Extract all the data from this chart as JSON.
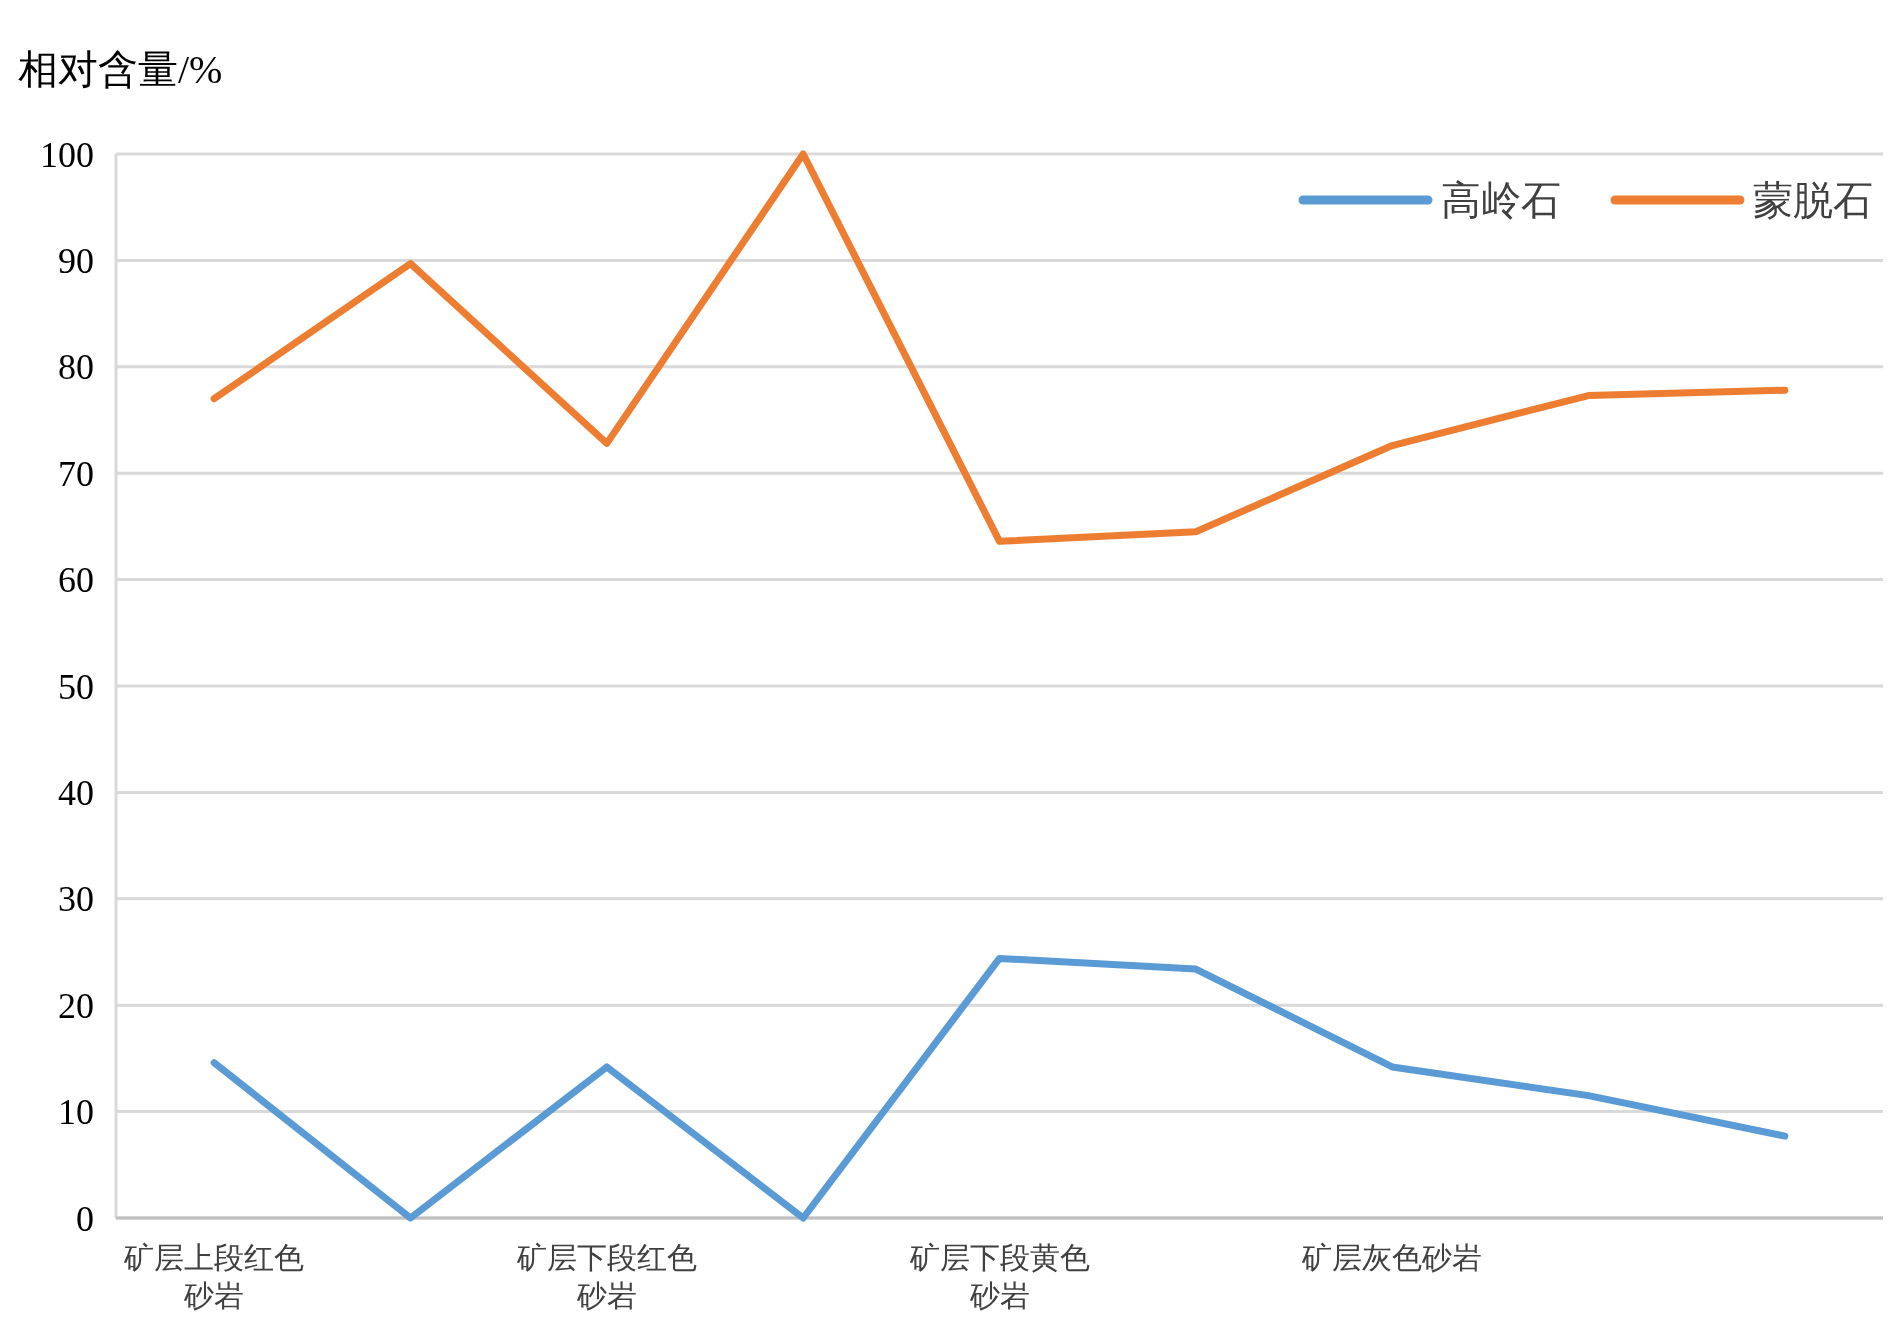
{
  "chart_data": {
    "type": "line",
    "ylabel": "相对含量/%",
    "categories": [
      "矿层上段红色砂岩",
      null,
      "矿层下段红色砂岩",
      null,
      "矿层下段黄色砂岩",
      null,
      "矿层灰色砂岩",
      null,
      null
    ],
    "series": [
      {
        "name": "高岭石",
        "color": "#5b9bd5",
        "values": [
          14.6,
          0,
          14.2,
          0,
          24.4,
          23.4,
          14.2,
          11.5,
          7.7
        ]
      },
      {
        "name": "蒙脱石",
        "color": "#ed7d31",
        "values": [
          77,
          89.7,
          72.8,
          100,
          63.6,
          64.5,
          72.6,
          77.3,
          77.8
        ]
      }
    ],
    "ylim": [
      0,
      100
    ],
    "yticks": [
      0,
      10,
      20,
      30,
      40,
      50,
      60,
      70,
      80,
      90,
      100
    ],
    "grid": "y",
    "legend": "top right",
    "marker": "none",
    "line_style": "solid"
  }
}
